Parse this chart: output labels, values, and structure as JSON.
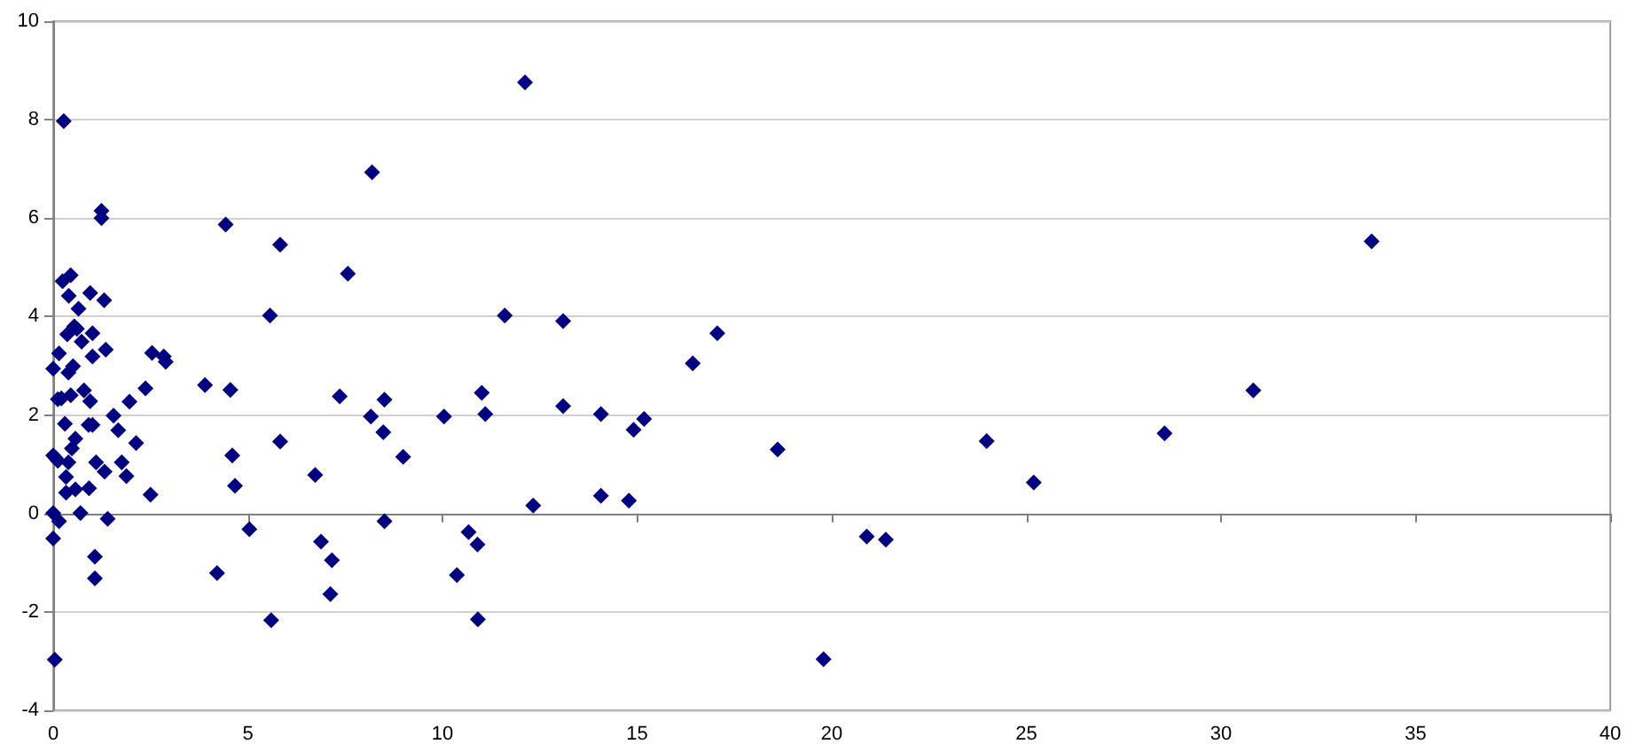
{
  "chart_data": {
    "type": "scatter",
    "marker": "diamond",
    "grid": "y",
    "xlim": [
      0,
      40
    ],
    "xticks": [
      0,
      5,
      10,
      15,
      20,
      25,
      30,
      35,
      40
    ],
    "ylim": [
      -4,
      10
    ],
    "yticks": [
      -4,
      -2,
      0,
      2,
      4,
      6,
      8,
      10
    ],
    "series": [
      {
        "color": "#000080",
        "x": [
          0.27,
          1.24,
          1.24,
          4.43,
          5.83,
          0.24,
          0.45,
          0.4,
          0.95,
          1.31,
          0.65,
          5.57,
          0.54,
          0.61,
          0.36,
          1.01,
          0.73,
          0.15,
          1.35,
          1.01,
          0.51,
          0.39,
          0,
          2.54,
          2.84,
          2.89,
          3.9,
          4.55,
          2.37,
          0.12,
          0.21,
          0.45,
          0.79,
          0.95,
          1.55,
          1.96,
          0.3,
          0.91,
          1.01,
          1.67,
          0.57,
          2.13,
          5.83,
          4.6,
          0,
          0.06,
          0.12,
          0.39,
          0.48,
          1.1,
          1.76,
          1.32,
          1.88,
          0.33,
          0.33,
          0.57,
          0.92,
          2.5,
          4.67,
          0,
          0.7,
          0.15,
          1.4,
          0,
          1.07,
          1.07,
          5.04,
          4.21,
          5.6,
          0.04,
          12.12,
          8.19,
          7.57,
          11.6,
          7.36,
          8.51,
          8.16,
          8.48,
          10.04,
          11.01,
          11.1,
          8.99,
          6.73,
          12.33,
          8.51,
          6.88,
          7.16,
          7.12,
          10.67,
          10.9,
          10.37,
          10.91,
          13.1,
          16.43,
          17.06,
          13.1,
          14.07,
          15.18,
          14.91,
          18.61,
          14.07,
          14.79,
          19.79,
          20.9,
          21.39,
          23.98,
          25.19,
          28.55,
          30.83,
          33.87
        ],
        "values": [
          7.97,
          6.15,
          6.0,
          5.87,
          5.46,
          4.72,
          4.84,
          4.42,
          4.48,
          4.33,
          4.16,
          4.02,
          3.8,
          3.75,
          3.64,
          3.66,
          3.49,
          3.25,
          3.33,
          3.19,
          2.99,
          2.86,
          2.94,
          3.26,
          3.19,
          3.08,
          2.61,
          2.51,
          2.54,
          2.32,
          2.34,
          2.4,
          2.5,
          2.28,
          1.99,
          2.27,
          1.82,
          1.8,
          1.8,
          1.69,
          1.52,
          1.43,
          1.46,
          1.18,
          1.18,
          1.13,
          1.07,
          1.04,
          1.32,
          1.04,
          1.04,
          0.85,
          0.76,
          0.74,
          0.42,
          0.49,
          0.51,
          0.38,
          0.56,
          0.01,
          0.01,
          -0.16,
          -0.11,
          -0.51,
          -0.88,
          -1.32,
          -0.32,
          -1.21,
          -2.17,
          -2.97,
          8.76,
          6.93,
          4.87,
          4.02,
          2.38,
          2.31,
          1.97,
          1.65,
          1.97,
          2.45,
          2.02,
          1.15,
          0.78,
          0.16,
          -0.16,
          -0.57,
          -0.95,
          -1.64,
          -0.38,
          -0.63,
          -1.25,
          -2.15,
          3.91,
          3.05,
          3.66,
          2.18,
          2.02,
          1.92,
          1.7,
          1.3,
          0.36,
          0.26,
          -2.96,
          -0.47,
          -0.53,
          1.47,
          0.63,
          1.63,
          2.5,
          5.53
        ]
      }
    ]
  }
}
